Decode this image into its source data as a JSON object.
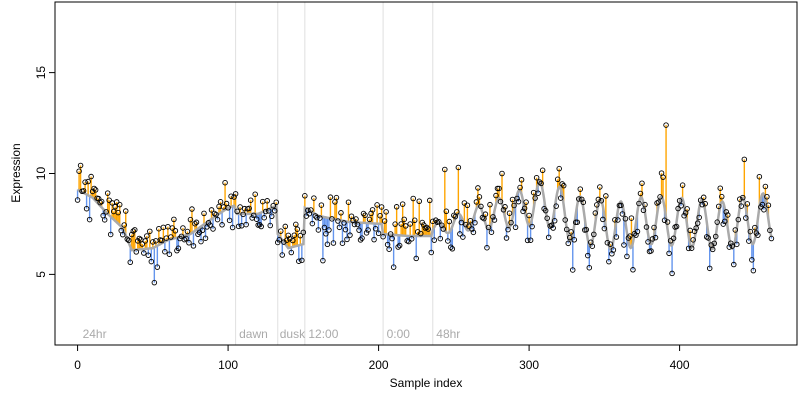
{
  "chart_data": {
    "type": "scatter",
    "title": "",
    "xlabel": "Sample index",
    "ylabel": "Expression",
    "xlim": [
      -15,
      478
    ],
    "ylim": [
      1.5,
      18.5
    ],
    "x_ticks": [
      0,
      100,
      200,
      300,
      400
    ],
    "y_ticks": [
      5,
      10,
      15
    ],
    "grid": false,
    "legend": "none",
    "colors": {
      "fit_line": "#aaaaaa",
      "residual_above": "#ffa500",
      "residual_below": "#6495ed",
      "point_edge": "#000000",
      "divider": "#e0e0e0",
      "phase_label": "#aaaaaa"
    },
    "phase_boundaries": [
      105,
      133,
      151,
      203,
      236
    ],
    "phase_labels": [
      {
        "x": 2,
        "text": "24hr"
      },
      {
        "x": 106,
        "text": "dawn"
      },
      {
        "x": 133,
        "text": "dusk"
      },
      {
        "x": 152,
        "text": "12:00"
      },
      {
        "x": 204,
        "text": "0:00"
      },
      {
        "x": 237,
        "text": "48hr"
      }
    ],
    "fit_anchors": [
      [
        0,
        9.2
      ],
      [
        10,
        8.8
      ],
      [
        20,
        8.0
      ],
      [
        30,
        7.3
      ],
      [
        36,
        6.2
      ],
      [
        50,
        6.3
      ],
      [
        60,
        6.7
      ],
      [
        75,
        7.0
      ],
      [
        90,
        7.8
      ],
      [
        100,
        8.3
      ],
      [
        104,
        8.4
      ],
      [
        106,
        8.0
      ],
      [
        120,
        8.0
      ],
      [
        132,
        8.4
      ],
      [
        133,
        7.0
      ],
      [
        140,
        6.3
      ],
      [
        150,
        6.5
      ],
      [
        151,
        8.3
      ],
      [
        160,
        7.9
      ],
      [
        180,
        7.6
      ],
      [
        202,
        7.5
      ],
      [
        203,
        7.0
      ],
      [
        220,
        6.9
      ],
      [
        235,
        6.9
      ],
      [
        236,
        7.2
      ],
      [
        260,
        7.7
      ],
      [
        290,
        8.2
      ],
      [
        310,
        8.6
      ],
      [
        330,
        7.7
      ],
      [
        360,
        7.4
      ],
      [
        380,
        7.7
      ],
      [
        400,
        7.6
      ],
      [
        430,
        7.4
      ],
      [
        461,
        7.9
      ]
    ],
    "oscillation": {
      "start_x": 236,
      "amp_start": 0.25,
      "amp_end": 1.2,
      "amp_ramp_end": 320,
      "period": 13.5
    },
    "n_points": 462,
    "noise_sd": 0.6,
    "seed": 20240517,
    "outliers": [
      {
        "x": 391,
        "y": 12.4
      },
      {
        "x": 443,
        "y": 10.7
      },
      {
        "x": 253,
        "y": 10.3
      },
      {
        "x": 244,
        "y": 10.2
      },
      {
        "x": 282,
        "y": 10.0
      },
      {
        "x": 420,
        "y": 5.3
      },
      {
        "x": 35,
        "y": 5.6
      }
    ]
  }
}
